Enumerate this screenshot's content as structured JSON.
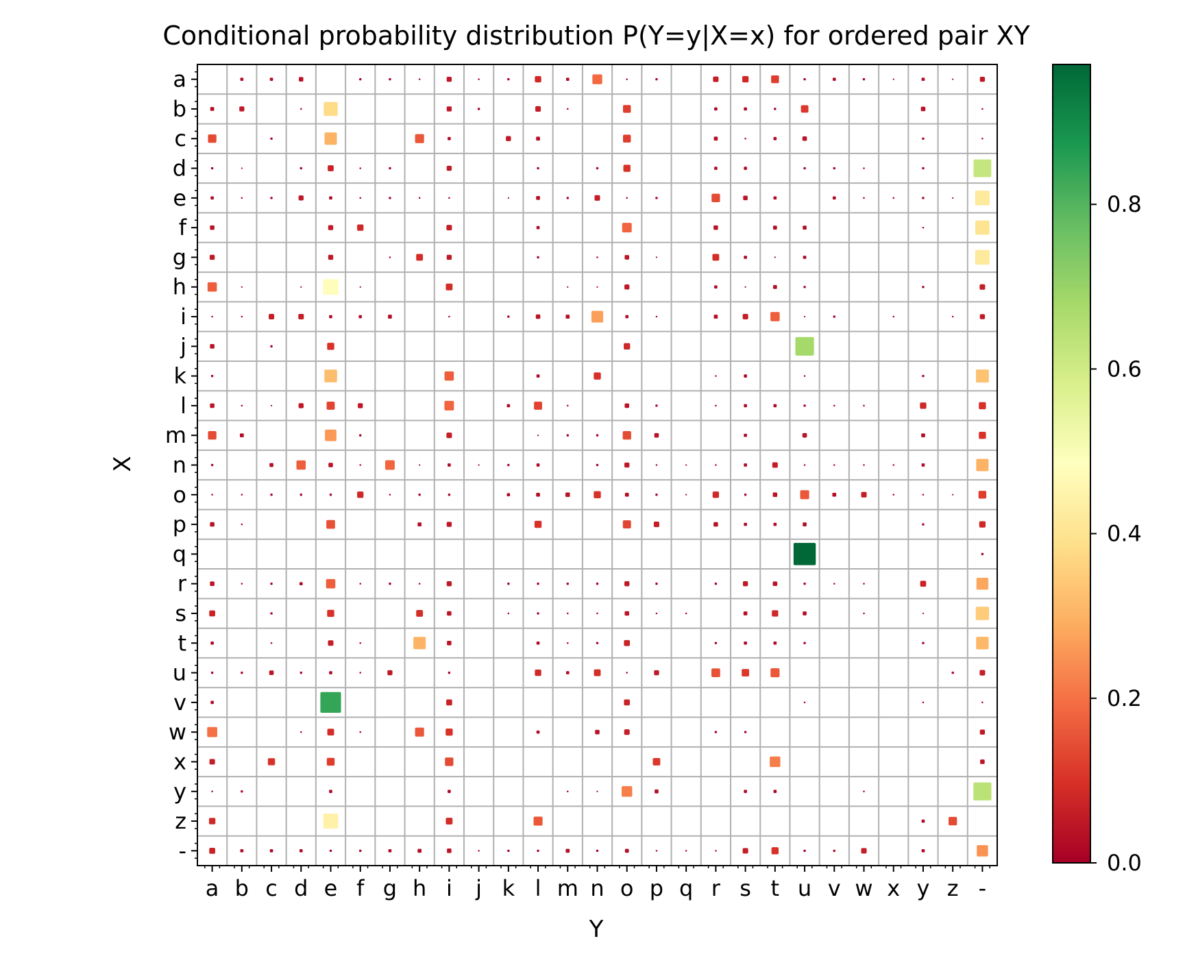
{
  "chart_data": {
    "type": "heatmap",
    "title": "Conditional probability distribution P(Y=y|X=x) for ordered pair XY",
    "xlabel": "Y",
    "ylabel": "X",
    "x_categories": [
      "a",
      "b",
      "c",
      "d",
      "e",
      "f",
      "g",
      "h",
      "i",
      "j",
      "k",
      "l",
      "m",
      "n",
      "o",
      "p",
      "q",
      "r",
      "s",
      "t",
      "u",
      "v",
      "w",
      "x",
      "y",
      "z",
      "-"
    ],
    "y_categories": [
      "a",
      "b",
      "c",
      "d",
      "e",
      "f",
      "g",
      "h",
      "i",
      "j",
      "k",
      "l",
      "m",
      "n",
      "o",
      "p",
      "q",
      "r",
      "s",
      "t",
      "u",
      "v",
      "w",
      "x",
      "y",
      "z",
      "-"
    ],
    "marker": "square, size and color both encode probability",
    "grid": true,
    "colorbar": {
      "colormap": "RdYlGn",
      "range": [
        0,
        0.97
      ],
      "ticks": [
        0.0,
        0.2,
        0.4,
        0.6,
        0.8
      ],
      "tick_labels": [
        "0.0",
        "0.2",
        "0.4",
        "0.6",
        "0.8"
      ],
      "colors": [
        "#a50026",
        "#d73027",
        "#f46d43",
        "#fdae61",
        "#fee08b",
        "#ffffbf",
        "#d9ef8b",
        "#a6d96a",
        "#66bd63",
        "#1a9850",
        "#006837"
      ]
    },
    "values": [
      [
        0,
        0.02,
        0.02,
        0.04,
        0,
        0.01,
        0.01,
        0.005,
        0.05,
        0.005,
        0.01,
        0.08,
        0.02,
        0.19,
        0.005,
        0.01,
        0,
        0.06,
        0.08,
        0.12,
        0.01,
        0.02,
        0.01,
        0.002,
        0.02,
        0.002,
        0.05
      ],
      [
        0.03,
        0.05,
        0,
        0.005,
        0.38,
        0,
        0,
        0,
        0.05,
        0.01,
        0,
        0.06,
        0.005,
        0,
        0.12,
        0,
        0,
        0.02,
        0.02,
        0.01,
        0.11,
        0,
        0,
        0,
        0.04,
        0,
        0.005
      ],
      [
        0.14,
        0,
        0.01,
        0,
        0.3,
        0,
        0,
        0.16,
        0.02,
        0,
        0.05,
        0.03,
        0,
        0,
        0.12,
        0,
        0,
        0.03,
        0.005,
        0.02,
        0.04,
        0,
        0,
        0,
        0.01,
        0,
        0.005
      ],
      [
        0.01,
        0.002,
        0,
        0.01,
        0.07,
        0.005,
        0.01,
        0,
        0.05,
        0,
        0,
        0.01,
        0,
        0.01,
        0.1,
        0,
        0,
        0.02,
        0.02,
        0,
        0.01,
        0.01,
        0.005,
        0,
        0.01,
        0,
        0.62
      ],
      [
        0.02,
        0.005,
        0.01,
        0.05,
        0.02,
        0.005,
        0.01,
        0.005,
        0.005,
        0,
        0.002,
        0.03,
        0.01,
        0.06,
        0.005,
        0.01,
        0,
        0.14,
        0.04,
        0.02,
        0,
        0.02,
        0.005,
        0.005,
        0.01,
        0.002,
        0.42
      ],
      [
        0.04,
        0,
        0,
        0,
        0.05,
        0.08,
        0,
        0,
        0.06,
        0,
        0,
        0.02,
        0,
        0,
        0.18,
        0,
        0,
        0.04,
        0,
        0.03,
        0.03,
        0,
        0,
        0,
        0.005,
        0,
        0.4
      ],
      [
        0.05,
        0,
        0,
        0,
        0.05,
        0,
        0.005,
        0.09,
        0.05,
        0,
        0,
        0.01,
        0,
        0.005,
        0.04,
        0.002,
        0,
        0.09,
        0.02,
        0.002,
        0.02,
        0,
        0,
        0,
        0,
        0,
        0.42
      ],
      [
        0.17,
        0.002,
        0,
        0.002,
        0.48,
        0.002,
        0,
        0,
        0.09,
        0,
        0,
        0,
        0.002,
        0.002,
        0.05,
        0,
        0,
        0.02,
        0.002,
        0.03,
        0.01,
        0,
        0,
        0,
        0.01,
        0,
        0.06
      ],
      [
        0.005,
        0.005,
        0.06,
        0.06,
        0.02,
        0.02,
        0.03,
        0,
        0.005,
        0,
        0.01,
        0.04,
        0.03,
        0.27,
        0.02,
        0.005,
        0,
        0.03,
        0.06,
        0.17,
        0.002,
        0.01,
        0,
        0.005,
        0,
        0.005,
        0.05
      ],
      [
        0.04,
        0,
        0.01,
        0,
        0.1,
        0,
        0,
        0,
        0,
        0,
        0,
        0,
        0,
        0,
        0.08,
        0,
        0,
        0,
        0,
        0,
        0.68,
        0,
        0,
        0,
        0,
        0,
        0
      ],
      [
        0.01,
        0,
        0,
        0,
        0.32,
        0,
        0,
        0,
        0.17,
        0,
        0,
        0.02,
        0,
        0.1,
        0,
        0,
        0,
        0.005,
        0.02,
        0,
        0.005,
        0,
        0,
        0,
        0.01,
        0,
        0.33
      ],
      [
        0.04,
        0.005,
        0.002,
        0.05,
        0.13,
        0.05,
        0,
        0,
        0.18,
        0,
        0.02,
        0.13,
        0.005,
        0,
        0.04,
        0.01,
        0,
        0.005,
        0.02,
        0.02,
        0.01,
        0.005,
        0.005,
        0,
        0.08,
        0,
        0.1
      ],
      [
        0.14,
        0.03,
        0,
        0,
        0.26,
        0.01,
        0,
        0,
        0.06,
        0,
        0,
        0.002,
        0.01,
        0.01,
        0.14,
        0.04,
        0,
        0,
        0.02,
        0,
        0.04,
        0,
        0,
        0,
        0.03,
        0,
        0.1
      ],
      [
        0.01,
        0,
        0.03,
        0.17,
        0.04,
        0.005,
        0.18,
        0.002,
        0.02,
        0.002,
        0.01,
        0.02,
        0,
        0.01,
        0.05,
        0.005,
        0.002,
        0.005,
        0.02,
        0.06,
        0.005,
        0.005,
        0.005,
        0.005,
        0.02,
        0,
        0.3
      ],
      [
        0.005,
        0.005,
        0.01,
        0.01,
        0.01,
        0.08,
        0.005,
        0.01,
        0.01,
        0,
        0.02,
        0.03,
        0.04,
        0.1,
        0.03,
        0.01,
        0.002,
        0.08,
        0.01,
        0.04,
        0.16,
        0.03,
        0.06,
        0.005,
        0.005,
        0.002,
        0.12
      ],
      [
        0.04,
        0.005,
        0,
        0,
        0.15,
        0,
        0,
        0.03,
        0.05,
        0,
        0,
        0.1,
        0,
        0,
        0.13,
        0.06,
        0,
        0.04,
        0.02,
        0.02,
        0.03,
        0,
        0,
        0,
        0.01,
        0,
        0.08
      ],
      [
        0,
        0,
        0,
        0,
        0,
        0,
        0,
        0,
        0,
        0,
        0,
        0,
        0,
        0,
        0,
        0,
        0,
        0,
        0,
        0,
        0.97,
        0,
        0,
        0,
        0,
        0,
        0.01
      ],
      [
        0.04,
        0.005,
        0.01,
        0.02,
        0.17,
        0.005,
        0.01,
        0.005,
        0.05,
        0,
        0.01,
        0.01,
        0.01,
        0.01,
        0.05,
        0.01,
        0,
        0.01,
        0.05,
        0.04,
        0.01,
        0.005,
        0.005,
        0,
        0.07,
        0,
        0.28
      ],
      [
        0.07,
        0,
        0.01,
        0,
        0.1,
        0,
        0,
        0.09,
        0.04,
        0,
        0.005,
        0.01,
        0.005,
        0.005,
        0.04,
        0.005,
        0.005,
        0,
        0.03,
        0.08,
        0.03,
        0,
        0.005,
        0,
        0.002,
        0,
        0.35
      ],
      [
        0.02,
        0,
        0.005,
        0,
        0.06,
        0.005,
        0,
        0.3,
        0.04,
        0,
        0,
        0.02,
        0.005,
        0.01,
        0.07,
        0,
        0,
        0.01,
        0.02,
        0.02,
        0.01,
        0,
        0,
        0,
        0.01,
        0,
        0.31
      ],
      [
        0.01,
        0.01,
        0.04,
        0.01,
        0.02,
        0.005,
        0.05,
        0,
        0.01,
        0,
        0,
        0.08,
        0.02,
        0.09,
        0.005,
        0.05,
        0,
        0.15,
        0.11,
        0.16,
        0,
        0,
        0,
        0,
        0,
        0.01,
        0.06
      ],
      [
        0.02,
        0,
        0,
        0,
        0.84,
        0,
        0,
        0,
        0.07,
        0,
        0,
        0,
        0,
        0,
        0.07,
        0,
        0,
        0,
        0,
        0,
        0.005,
        0,
        0,
        0,
        0.005,
        0,
        0.005
      ],
      [
        0.2,
        0,
        0,
        0.005,
        0.09,
        0.005,
        0,
        0.16,
        0.1,
        0,
        0,
        0.02,
        0,
        0.04,
        0.06,
        0,
        0,
        0.01,
        0.01,
        0,
        0,
        0,
        0,
        0,
        0,
        0,
        0.05
      ],
      [
        0.06,
        0,
        0.1,
        0,
        0.12,
        0,
        0,
        0,
        0.14,
        0,
        0,
        0,
        0,
        0,
        0,
        0.11,
        0,
        0,
        0,
        0.22,
        0,
        0,
        0,
        0,
        0,
        0,
        0.04
      ],
      [
        0.005,
        0.01,
        0,
        0,
        0.02,
        0,
        0,
        0,
        0.02,
        0,
        0,
        0,
        0.005,
        0.002,
        0.22,
        0.03,
        0,
        0,
        0.02,
        0.02,
        0,
        0,
        0.005,
        0,
        0,
        0,
        0.64
      ],
      [
        0.08,
        0,
        0,
        0,
        0.44,
        0,
        0,
        0,
        0.09,
        0,
        0,
        0.16,
        0,
        0,
        0,
        0,
        0,
        0,
        0,
        0,
        0,
        0,
        0,
        0,
        0.02,
        0.14,
        0
      ],
      [
        0.07,
        0.02,
        0.02,
        0.02,
        0.01,
        0.01,
        0.02,
        0.03,
        0.04,
        0.005,
        0.01,
        0.01,
        0.03,
        0.01,
        0.03,
        0.005,
        0.005,
        0.005,
        0.06,
        0.1,
        0.01,
        0.01,
        0.06,
        0,
        0.02,
        0,
        0.25
      ]
    ]
  }
}
